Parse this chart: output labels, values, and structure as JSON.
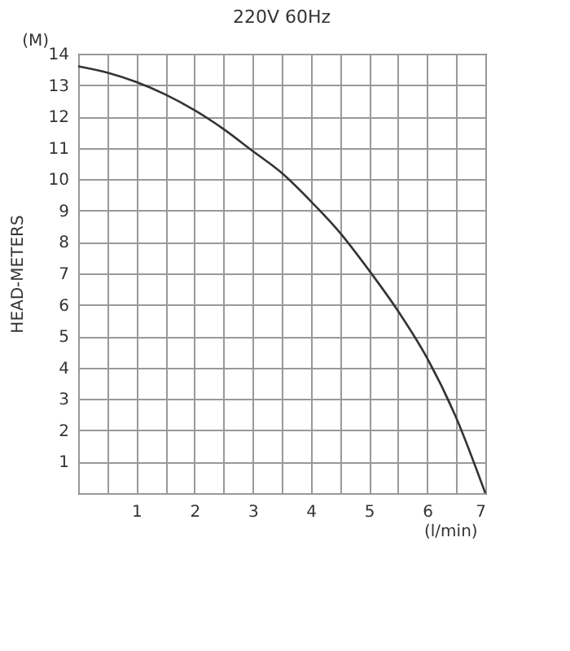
{
  "chart_data": {
    "type": "line",
    "title": "220V  60Hz",
    "xlabel": "(l/min)",
    "ylabel": "HEAD-METERS",
    "annotations": [
      "(M)"
    ],
    "x": [
      0,
      0.5,
      1,
      1.5,
      2,
      2.5,
      3,
      3.5,
      4,
      4.5,
      5,
      5.5,
      6,
      6.5,
      7
    ],
    "series": [
      {
        "color": "#333333",
        "values": [
          13.6,
          13.4,
          13.1,
          12.7,
          12.2,
          11.6,
          10.9,
          10.2,
          9.3,
          8.3,
          7.1,
          5.8,
          4.3,
          2.4,
          0
        ]
      }
    ],
    "xlim": [
      0,
      7
    ],
    "ylim": [
      0,
      14
    ],
    "xticks": [
      {
        "value": 0,
        "label": null
      },
      {
        "value": 0.5,
        "label": null
      },
      1,
      {
        "value": 1.5,
        "label": null
      },
      2,
      {
        "value": 2.5,
        "label": null
      },
      3,
      {
        "value": 3.5,
        "label": null
      },
      4,
      {
        "value": 4.5,
        "label": null
      },
      5,
      {
        "value": 5.5,
        "label": null
      },
      6,
      {
        "value": 6.5,
        "label": null
      },
      7
    ],
    "yticks": [
      {
        "value": 0,
        "label": null
      },
      1,
      2,
      3,
      4,
      5,
      6,
      7,
      8,
      9,
      10,
      11,
      12,
      13,
      14
    ],
    "grid": true,
    "marker": "none",
    "line_style": "solid"
  }
}
